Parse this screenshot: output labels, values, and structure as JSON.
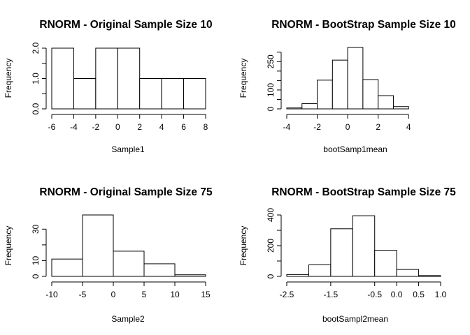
{
  "chart_data": [
    {
      "type": "bar",
      "title": "RNORM - Original Sample Size 10",
      "xlabel": "Sample1",
      "ylabel": "Frequency",
      "bins": [
        [
          -6,
          -4
        ],
        [
          -4,
          -2
        ],
        [
          -2,
          0
        ],
        [
          0,
          2
        ],
        [
          2,
          4
        ],
        [
          4,
          6
        ],
        [
          6,
          8
        ]
      ],
      "values": [
        2,
        1,
        2,
        2,
        1,
        1,
        1
      ],
      "xlim": [
        -6,
        8
      ],
      "ylim": [
        0,
        2
      ],
      "xticks": [
        -6,
        -4,
        -2,
        0,
        2,
        4,
        6,
        8
      ],
      "xtick_labels": [
        "-6",
        "-4",
        "-2",
        "0",
        "2",
        "4",
        "6",
        "8"
      ],
      "yticks": [
        0,
        1,
        2
      ],
      "ytick_labels": [
        "0.0",
        "1.0",
        "2.0"
      ],
      "minor_yticks": [
        0.5,
        1.5
      ]
    },
    {
      "type": "bar",
      "title": "RNORM - BootStrap Sample Size 10",
      "xlabel": "bootSamp1mean",
      "ylabel": "Frequency",
      "bins": [
        [
          -4,
          -3
        ],
        [
          -3,
          -2
        ],
        [
          -2,
          -1
        ],
        [
          -1,
          0
        ],
        [
          0,
          1
        ],
        [
          1,
          2
        ],
        [
          2,
          3
        ],
        [
          3,
          4
        ]
      ],
      "values": [
        5,
        28,
        152,
        258,
        325,
        155,
        70,
        12
      ],
      "xlim": [
        -4,
        5
      ],
      "ylim": [
        0,
        325
      ],
      "xticks": [
        -4,
        -2,
        0,
        2,
        4
      ],
      "xtick_labels": [
        "-4",
        "-2",
        "0",
        "2",
        "4"
      ],
      "yticks": [
        0,
        100,
        250
      ],
      "ytick_labels": [
        "0",
        "100",
        "250"
      ],
      "minor_yticks": [
        50,
        150,
        200,
        300
      ]
    },
    {
      "type": "bar",
      "title": "RNORM - Original Sample Size 75",
      "xlabel": "Sample2",
      "ylabel": "Frequency",
      "bins": [
        [
          -10,
          -5
        ],
        [
          -5,
          0
        ],
        [
          0,
          5
        ],
        [
          5,
          10
        ],
        [
          10,
          15
        ]
      ],
      "values": [
        11,
        39,
        16,
        8,
        1
      ],
      "xlim": [
        -10,
        15
      ],
      "ylim": [
        0,
        39
      ],
      "xticks": [
        -10,
        -5,
        0,
        5,
        10,
        15
      ],
      "xtick_labels": [
        "-10",
        "-5",
        "0",
        "5",
        "10",
        "15"
      ],
      "yticks": [
        0,
        10,
        30
      ],
      "ytick_labels": [
        "0",
        "10",
        "30"
      ],
      "minor_yticks": [
        20
      ]
    },
    {
      "type": "bar",
      "title": "RNORM - BootStrap Sample Size 75",
      "xlabel": "bootSampl2mean",
      "ylabel": "Frequency",
      "bins": [
        [
          -2.5,
          -2
        ],
        [
          -2,
          -1.5
        ],
        [
          -1.5,
          -1
        ],
        [
          -1,
          -0.5
        ],
        [
          -0.5,
          0
        ],
        [
          0,
          0.5
        ],
        [
          0.5,
          1
        ]
      ],
      "values": [
        12,
        75,
        310,
        395,
        170,
        45,
        5
      ],
      "xlim": [
        -2.5,
        1
      ],
      "ylim": [
        0,
        400
      ],
      "xticks": [
        -2.5,
        -1.5,
        -0.5,
        0,
        0.5,
        1
      ],
      "xtick_labels": [
        "-2.5",
        "-1.5",
        "-0.5",
        "0.0",
        "0.5",
        "1.0"
      ],
      "yticks": [
        0,
        200,
        400
      ],
      "ytick_labels": [
        "0",
        "200",
        "400"
      ],
      "minor_yticks": [
        100,
        300
      ]
    }
  ]
}
